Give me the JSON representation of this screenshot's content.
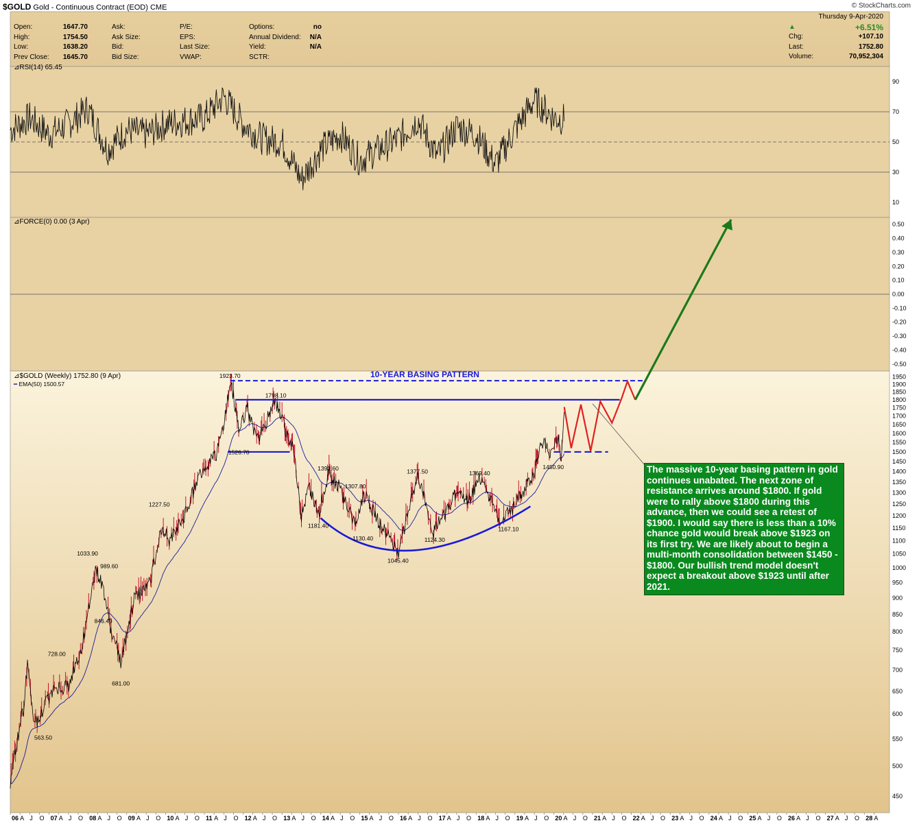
{
  "header": {
    "symbol": "$GOLD",
    "name": "Gold - Continuous Contract (EOD)",
    "exchange": "CME",
    "brand": "© StockCharts.com",
    "fields_col1": [
      {
        "label": "Open:",
        "value": "1647.70"
      },
      {
        "label": "High:",
        "value": "1754.50"
      },
      {
        "label": "Low:",
        "value": "1638.20"
      },
      {
        "label": "Prev Close:",
        "value": "1645.70"
      }
    ],
    "fields_col2": [
      "Ask:",
      "Ask Size:",
      "Bid:",
      "Bid Size:"
    ],
    "fields_col3": [
      "P/E:",
      "EPS:",
      "Last Size:",
      "VWAP:"
    ],
    "fields_col4": [
      {
        "label": "Options:",
        "value": "no"
      },
      {
        "label": "Annual Dividend:",
        "value": "N/A"
      },
      {
        "label": "Yield:",
        "value": "N/A"
      },
      {
        "label": "SCTR:",
        "value": ""
      }
    ],
    "date": "Thursday  9-Apr-2020",
    "pct_change": "+6.51%",
    "summary": [
      {
        "label": "Chg:",
        "value": "+107.10"
      },
      {
        "label": "Last:",
        "value": "1752.80"
      },
      {
        "label": "Volume:",
        "value": "70,952,304"
      }
    ]
  },
  "panels": {
    "rsi_label": "RSI(14) 65.45",
    "force_label": "FORCE(0) 0.00 (3 Apr)",
    "price_label": "$GOLD (Weekly) 1752.80 (9 Apr)",
    "ema_label": "EMA(50) 1500.57"
  },
  "annotation": {
    "pattern_title": "10-YEAR BASING PATTERN",
    "text": "The massive 10-year basing pattern in gold continues unabated. The next zone of resistance arrives around $1800. If gold were to rally above $1800 during this advance, then we could see a retest of $1900. I would say there is less than a 10% chance gold would break above $1923 on its first try. We are likely about to begin a multi-month consolidation between $1450 - $1800. Our bullish trend model doesn't expect a breakout above $1923 until after 2021."
  },
  "colors": {
    "panel_bg": "#e8d2a4",
    "price_line": "#000000",
    "down_bar": "#c4122a",
    "ema": "#1a1a9a",
    "blue_lines": "#1a1ad6",
    "projection": "#e02020",
    "arrow": "#1a7a1a",
    "annotation_bg": "#0a8a1e"
  },
  "chart_data": [
    {
      "type": "line",
      "name": "RSI(14)",
      "ylim": [
        0,
        100
      ],
      "yticks": [
        10,
        30,
        50,
        70,
        90
      ],
      "reference_lines": [
        30,
        50,
        70
      ],
      "x": [
        2006,
        2006.5,
        2007,
        2007.5,
        2008,
        2008.5,
        2009,
        2009.5,
        2010,
        2010.5,
        2011,
        2011.5,
        2012,
        2012.5,
        2013,
        2013.5,
        2014,
        2014.5,
        2015,
        2015.5,
        2016,
        2016.5,
        2017,
        2017.5,
        2018,
        2018.5,
        2019,
        2019.5,
        2020,
        2020.27
      ],
      "values": [
        58,
        66,
        55,
        62,
        72,
        45,
        58,
        55,
        62,
        64,
        66,
        80,
        62,
        52,
        50,
        25,
        45,
        55,
        38,
        45,
        52,
        65,
        40,
        60,
        55,
        35,
        58,
        78,
        66,
        65
      ]
    },
    {
      "type": "line",
      "name": "FORCE(0)",
      "ylim": [
        -0.55,
        0.55
      ],
      "yticks": [
        0.5,
        0.4,
        0.3,
        0.2,
        0.1,
        0.0,
        -0.1,
        -0.2,
        -0.3,
        -0.4,
        -0.5
      ],
      "values": [
        0.0
      ]
    },
    {
      "type": "line",
      "name": "$GOLD (Weekly)",
      "log_scale": true,
      "ylim": [
        425,
        1990
      ],
      "yticks": [
        450,
        500,
        550,
        600,
        650,
        700,
        750,
        800,
        850,
        900,
        950,
        1000,
        1050,
        1100,
        1150,
        1200,
        1250,
        1300,
        1350,
        1400,
        1450,
        1500,
        1550,
        1600,
        1650,
        1700,
        1750,
        1800,
        1850,
        1900,
        1950
      ],
      "x_tick_labels": [
        "06",
        "A",
        "J",
        "O",
        "07",
        "A",
        "J",
        "O",
        "08",
        "A",
        "J",
        "O",
        "09",
        "A",
        "J",
        "O",
        "10",
        "A",
        "J",
        "O",
        "11",
        "A",
        "J",
        "O",
        "12",
        "A",
        "J",
        "O",
        "13",
        "A",
        "J",
        "O",
        "14",
        "A",
        "J",
        "O",
        "15",
        "A",
        "J",
        "O",
        "16",
        "A",
        "J",
        "O",
        "17",
        "A",
        "J",
        "O",
        "18",
        "A",
        "J",
        "O",
        "19",
        "A",
        "J",
        "O",
        "20",
        "A",
        "J",
        "O",
        "21",
        "A",
        "J",
        "O",
        "22",
        "A",
        "J",
        "O",
        "23",
        "A",
        "J",
        "O",
        "24",
        "A",
        "J",
        "O",
        "25",
        "A",
        "J",
        "O",
        "26",
        "A",
        "J",
        "O",
        "27",
        "A",
        "J",
        "O",
        "28",
        "A"
      ],
      "x": [
        2006.0,
        2006.35,
        2006.45,
        2006.6,
        2006.9,
        2007.2,
        2007.5,
        2007.85,
        2008.0,
        2008.2,
        2008.4,
        2008.6,
        2008.85,
        2009.2,
        2009.6,
        2009.9,
        2010.1,
        2010.5,
        2010.9,
        2011.3,
        2011.5,
        2011.67,
        2011.9,
        2012.1,
        2012.35,
        2012.5,
        2012.8,
        2013.0,
        2013.3,
        2013.5,
        2013.7,
        2013.95,
        2014.2,
        2014.5,
        2014.9,
        2015.1,
        2015.5,
        2015.9,
        2016.0,
        2016.3,
        2016.5,
        2016.9,
        2017.0,
        2017.5,
        2017.8,
        2018.1,
        2018.6,
        2018.9,
        2019.2,
        2019.5,
        2019.7,
        2019.9,
        2020.1,
        2020.2,
        2020.27
      ],
      "values": [
        470,
        620,
        720,
        570,
        620,
        660,
        660,
        760,
        850,
        1000,
        930,
        800,
        720,
        900,
        950,
        1150,
        1100,
        1200,
        1400,
        1480,
        1650,
        1923.7,
        1620,
        1750,
        1560,
        1600,
        1798.1,
        1680,
        1500,
        1200,
        1330,
        1210,
        1392.6,
        1320,
        1150,
        1300,
        1170,
        1080,
        1045.4,
        1250,
        1377.5,
        1130,
        1160,
        1300,
        1260,
        1369.4,
        1180,
        1220,
        1300,
        1400,
        1560,
        1500,
        1580,
        1470,
        1752.8
      ]
    }
  ],
  "price_labels": [
    "563.50",
    "728.00",
    "681.00",
    "846.40",
    "1033.90",
    "989.60",
    "1227.50",
    "1923.70",
    "1798.10",
    "1526.70",
    "1392.60",
    "1307.80",
    "1181.40",
    "1130.40",
    "1045.40",
    "1377.50",
    "1124.30",
    "1369.40",
    "1167.10",
    "1450.90"
  ]
}
